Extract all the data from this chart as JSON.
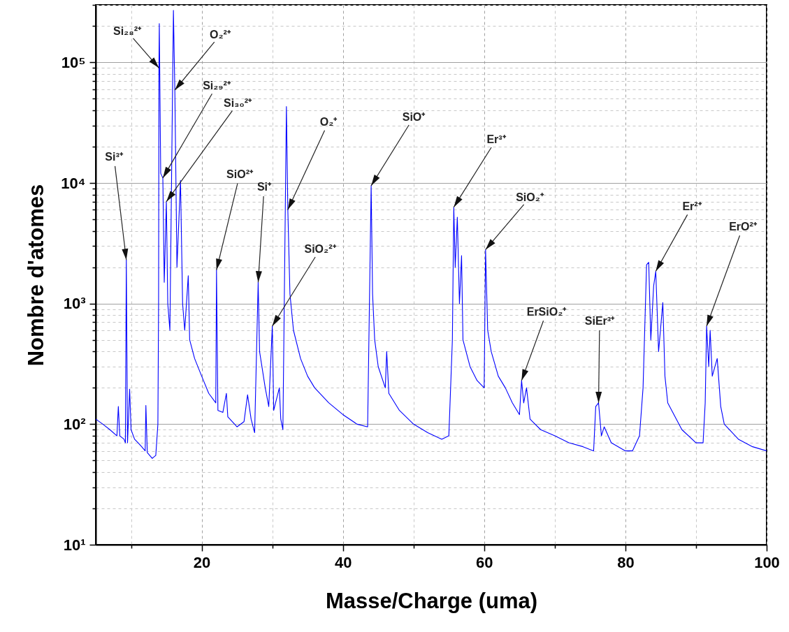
{
  "chart_data": {
    "type": "line",
    "xlabel": "Masse/Charge (uma)",
    "ylabel": "Nombre d'atomes",
    "log": "y",
    "grid": true,
    "xlim": [
      5,
      100
    ],
    "xticks": [
      {
        "value": 10,
        "label": null
      },
      20,
      {
        "value": 30,
        "label": null
      },
      40,
      {
        "value": 50,
        "label": null
      },
      60,
      {
        "value": 70,
        "label": null
      },
      80,
      {
        "value": 90,
        "label": null
      },
      100
    ],
    "ylim": [
      10,
      300000
    ],
    "yticks": [
      {
        "value": 10,
        "label": "10¹"
      },
      {
        "value": 20,
        "label": null
      },
      {
        "value": 30,
        "label": null
      },
      {
        "value": 40,
        "label": null
      },
      {
        "value": 50,
        "label": null
      },
      {
        "value": 60,
        "label": null
      },
      {
        "value": 70,
        "label": null
      },
      {
        "value": 80,
        "label": null
      },
      {
        "value": 90,
        "label": null
      },
      {
        "value": 100,
        "label": "10²"
      },
      {
        "value": 200,
        "label": null
      },
      {
        "value": 300,
        "label": null
      },
      {
        "value": 400,
        "label": null
      },
      {
        "value": 500,
        "label": null
      },
      {
        "value": 600,
        "label": null
      },
      {
        "value": 700,
        "label": null
      },
      {
        "value": 800,
        "label": null
      },
      {
        "value": 900,
        "label": null
      },
      {
        "value": 1000,
        "label": "10³"
      },
      {
        "value": 2000,
        "label": null
      },
      {
        "value": 3000,
        "label": null
      },
      {
        "value": 4000,
        "label": null
      },
      {
        "value": 5000,
        "label": null
      },
      {
        "value": 6000,
        "label": null
      },
      {
        "value": 7000,
        "label": null
      },
      {
        "value": 8000,
        "label": null
      },
      {
        "value": 9000,
        "label": null
      },
      {
        "value": 10000,
        "label": "10⁴"
      },
      {
        "value": 20000,
        "label": null
      },
      {
        "value": 30000,
        "label": null
      },
      {
        "value": 40000,
        "label": null
      },
      {
        "value": 50000,
        "label": null
      },
      {
        "value": 60000,
        "label": null
      },
      {
        "value": 70000,
        "label": null
      },
      {
        "value": 80000,
        "label": null
      },
      {
        "value": 90000,
        "label": null
      },
      {
        "value": 100000,
        "label": "10⁵"
      },
      {
        "value": 200000,
        "label": null
      },
      {
        "value": 300000,
        "label": null
      }
    ],
    "x": [
      5,
      6,
      7,
      8,
      8.2,
      8.4,
      9,
      9.2,
      9.33,
      9.5,
      9.8,
      10,
      10.5,
      11,
      11.5,
      12,
      12.1,
      12.3,
      13,
      13.5,
      13.8,
      13.9,
      13.95,
      14.0,
      14.2,
      14.5,
      14.7,
      15.0,
      15.2,
      15.5,
      16.0,
      16.2,
      16.5,
      17.0,
      17.3,
      17.6,
      18.1,
      18.3,
      19,
      20,
      21,
      22,
      22.1,
      22.3,
      23,
      23.5,
      23.7,
      24,
      25,
      26,
      26.5,
      27,
      27.5,
      28.0,
      28.2,
      29,
      29.5,
      30.0,
      30.2,
      31,
      31.2,
      31.5,
      32.0,
      32.2,
      32.5,
      33,
      34,
      35,
      36,
      38,
      40,
      42,
      43.5,
      44.0,
      44.2,
      44.5,
      45,
      46,
      46.2,
      46.5,
      48,
      50,
      52,
      54,
      55,
      55.5,
      55.7,
      55.9,
      56.2,
      56.5,
      56.8,
      57,
      58,
      59,
      60.0,
      60.2,
      60.5,
      61,
      62,
      63,
      64,
      65,
      65.3,
      65.6,
      66,
      66.5,
      68,
      70,
      72,
      74,
      75.5,
      75.8,
      76.2,
      76.6,
      77,
      78,
      80,
      81,
      82,
      82.5,
      83.0,
      83.3,
      83.6,
      84.0,
      84.3,
      84.7,
      85.3,
      85.6,
      86,
      88,
      90,
      91,
      91.3,
      91.5,
      91.8,
      92,
      92.3,
      93,
      93.5,
      94,
      96,
      98,
      100
    ],
    "series": [
      {
        "color": "#0000ff",
        "values": [
          110,
          100,
          90,
          80,
          140,
          80,
          75,
          70,
          2300,
          70,
          195,
          90,
          75,
          70,
          65,
          60,
          143,
          58,
          52,
          55,
          100,
          1000,
          90000,
          210000,
          12000,
          11000,
          1500,
          7000,
          1000,
          600,
          270000,
          59000,
          2000,
          10500,
          1000,
          600,
          1700,
          500,
          350,
          250,
          180,
          150,
          1900,
          130,
          125,
          180,
          115,
          110,
          95,
          105,
          175,
          110,
          85,
          1500,
          400,
          200,
          140,
          650,
          130,
          200,
          110,
          90,
          43000,
          6000,
          1200,
          600,
          350,
          250,
          200,
          150,
          120,
          100,
          95,
          9500,
          1200,
          500,
          300,
          200,
          400,
          180,
          130,
          100,
          85,
          75,
          80,
          500,
          6300,
          2000,
          5200,
          1000,
          2500,
          500,
          300,
          230,
          200,
          2800,
          600,
          400,
          250,
          200,
          150,
          120,
          230,
          150,
          200,
          110,
          90,
          80,
          70,
          65,
          60,
          140,
          150,
          80,
          95,
          70,
          60,
          60,
          80,
          200,
          2100,
          2200,
          500,
          1400,
          1850,
          400,
          1020,
          250,
          150,
          90,
          70,
          70,
          150,
          650,
          300,
          600,
          250,
          350,
          140,
          100,
          75,
          65,
          60
        ]
      }
    ],
    "annotations": [
      {
        "text": "Si₂₈²⁺",
        "x": 13.95,
        "y": 90000
      },
      {
        "text": "O₂²⁺",
        "x": 16.2,
        "y": 59000
      },
      {
        "text": "Si₂₉²⁺",
        "x": 14.5,
        "y": 11000
      },
      {
        "text": "Si₃₀²⁺",
        "x": 15.0,
        "y": 7000
      },
      {
        "text": "Si³⁺",
        "x": 9.33,
        "y": 2300
      },
      {
        "text": "SiO²⁺",
        "x": 22.1,
        "y": 1900
      },
      {
        "text": "Si⁺",
        "x": 28.0,
        "y": 1500
      },
      {
        "text": "SiO₂²⁺",
        "x": 30.0,
        "y": 650
      },
      {
        "text": "O₂⁺",
        "x": 32.2,
        "y": 6000
      },
      {
        "text": "SiO⁺",
        "x": 44.0,
        "y": 9500
      },
      {
        "text": "Er³⁺",
        "x": 55.7,
        "y": 6300
      },
      {
        "text": "SiO₂⁺",
        "x": 60.2,
        "y": 2800
      },
      {
        "text": "ErSiO₂⁺",
        "x": 65.3,
        "y": 230
      },
      {
        "text": "SiEr³⁺",
        "x": 76.2,
        "y": 150
      },
      {
        "text": "Er²⁺",
        "x": 84.3,
        "y": 1850
      },
      {
        "text": "ErO²⁺",
        "x": 91.5,
        "y": 650
      }
    ]
  }
}
